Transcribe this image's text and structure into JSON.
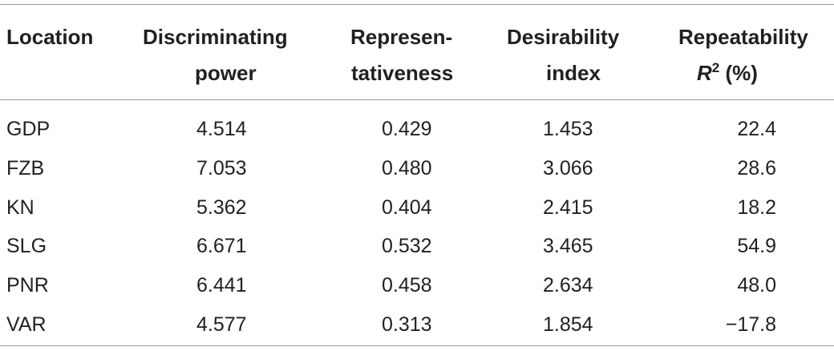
{
  "table": {
    "headers": {
      "location": "Location",
      "discriminating_line1": "Discriminating",
      "discriminating_line2": "power",
      "representativeness_line1": "Represen-",
      "representativeness_line2": "tativeness",
      "desirability_line1": "Desirability",
      "desirability_line2": "index",
      "repeatability_line1": "Repeatability",
      "repeatability_r": "R",
      "repeatability_sup": "2",
      "repeatability_unit": " (%)"
    },
    "rows": [
      {
        "location": "GDP",
        "discriminating_power": "4.514",
        "representativeness": "0.429",
        "desirability_index": "1.453",
        "repeatability": "22.4"
      },
      {
        "location": "FZB",
        "discriminating_power": "7.053",
        "representativeness": "0.480",
        "desirability_index": "3.066",
        "repeatability": "28.6"
      },
      {
        "location": "KN",
        "discriminating_power": "5.362",
        "representativeness": "0.404",
        "desirability_index": "2.415",
        "repeatability": "18.2"
      },
      {
        "location": "SLG",
        "discriminating_power": "6.671",
        "representativeness": "0.532",
        "desirability_index": "3.465",
        "repeatability": "54.9"
      },
      {
        "location": "PNR",
        "discriminating_power": "6.441",
        "representativeness": "0.458",
        "desirability_index": "2.634",
        "repeatability": "48.0"
      },
      {
        "location": "VAR",
        "discriminating_power": "4.577",
        "representativeness": "0.313",
        "desirability_index": "1.854",
        "repeatability": "−17.8"
      }
    ]
  }
}
